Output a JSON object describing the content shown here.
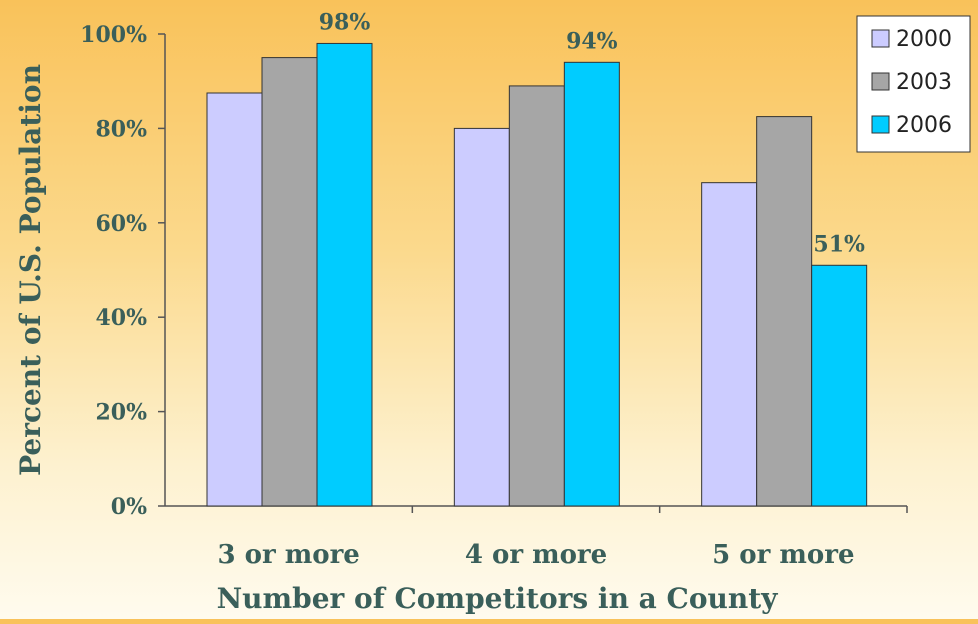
{
  "chart_data": {
    "type": "bar",
    "title": "",
    "xlabel": "Number of Competitors in a County",
    "ylabel": "Percent of U.S. Population",
    "categories": [
      "3 or more",
      "4 or more",
      "5 or more"
    ],
    "series": [
      {
        "name": "2000",
        "values": [
          87.5,
          80,
          68.5
        ],
        "color": "#ccccff"
      },
      {
        "name": "2003",
        "values": [
          95,
          89,
          82.5
        ],
        "color": "#a6a6a6"
      },
      {
        "name": "2006",
        "values": [
          98,
          94,
          51
        ],
        "color": "#00ccff"
      }
    ],
    "data_labels": [
      {
        "series": "2006",
        "category": "3 or more",
        "text": "98%"
      },
      {
        "series": "2006",
        "category": "4 or more",
        "text": "94%"
      },
      {
        "series": "2006",
        "category": "5 or more",
        "text": "51%"
      }
    ],
    "ylim": [
      0,
      100
    ],
    "yticks": [
      0,
      20,
      40,
      60,
      80,
      100
    ],
    "ytick_labels": [
      "0%",
      "20%",
      "40%",
      "60%",
      "80%",
      "100%"
    ],
    "grid": false,
    "legend_position": "top-right"
  }
}
